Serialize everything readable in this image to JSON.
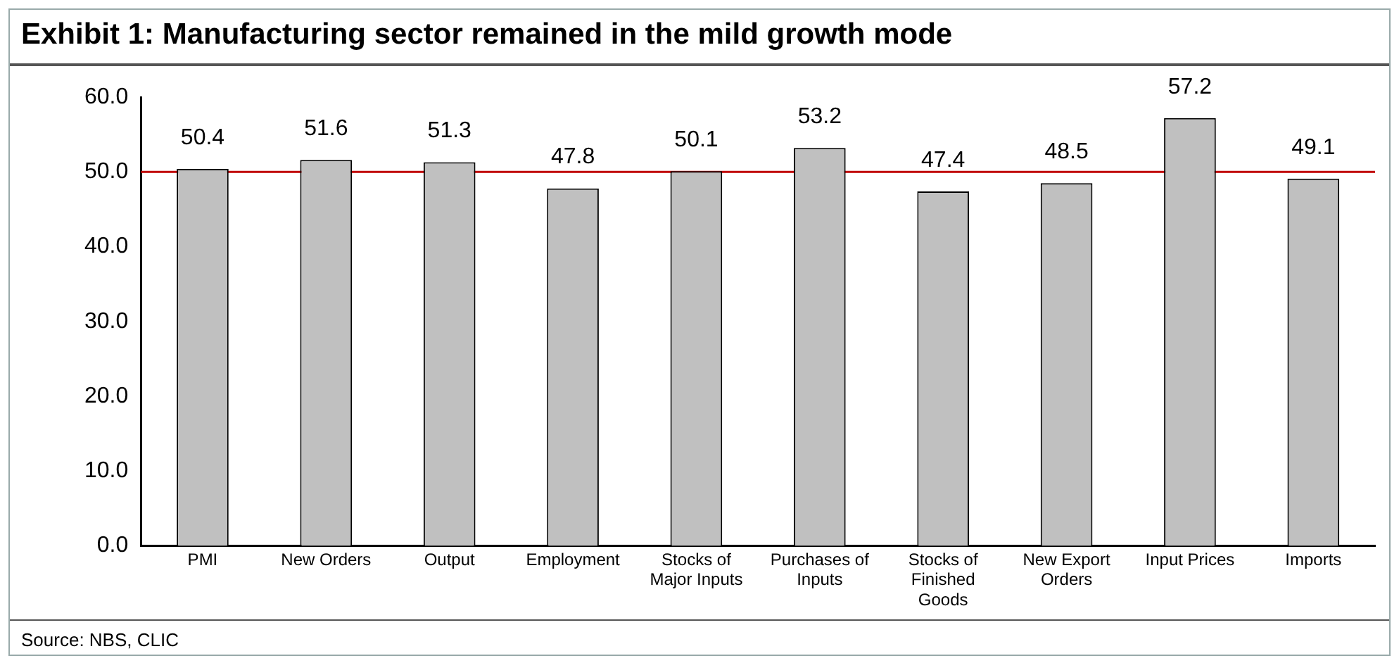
{
  "chart_data": {
    "type": "bar",
    "title": "Exhibit 1: Manufacturing sector remained in the mild growth mode",
    "categories": [
      "PMI",
      "New Orders",
      "Output",
      "Employment",
      "Stocks of Major Inputs",
      "Purchases of Inputs",
      "Stocks of Finished Goods",
      "New Export Orders",
      "Input Prices",
      "Imports"
    ],
    "values": [
      50.4,
      51.6,
      51.3,
      47.8,
      50.1,
      53.2,
      47.4,
      48.5,
      57.2,
      49.1
    ],
    "color": "#c0c0c0",
    "ylim": [
      0,
      60
    ],
    "yticks": [
      {
        "value": 0,
        "label": "0.0"
      },
      {
        "value": 10,
        "label": "10.0"
      },
      {
        "value": 20,
        "label": "20.0"
      },
      {
        "value": 30,
        "label": "30.0"
      },
      {
        "value": 40,
        "label": "40.0"
      },
      {
        "value": 50,
        "label": "50.0"
      },
      {
        "value": 60,
        "label": "60.0"
      }
    ],
    "grid": false,
    "legend": false,
    "data_labels": true,
    "ref_lines": [
      {
        "axis": "y",
        "value": 50,
        "color": "#c00000"
      }
    ],
    "annotations": [
      "Source: NBS, CLIC"
    ]
  }
}
